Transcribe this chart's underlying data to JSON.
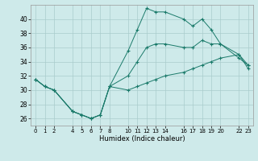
{
  "xlabel": "Humidex (Indice chaleur)",
  "background_color": "#ceeaea",
  "grid_color": "#aacccc",
  "line_color": "#1a7a6a",
  "xlim": [
    -0.5,
    23.5
  ],
  "ylim": [
    25.0,
    42.0
  ],
  "yticks": [
    26,
    28,
    30,
    32,
    34,
    36,
    38,
    40
  ],
  "xtick_positions": [
    0,
    1,
    2,
    4,
    5,
    6,
    7,
    8,
    10,
    11,
    12,
    13,
    14,
    16,
    17,
    18,
    19,
    20,
    22,
    23
  ],
  "xtick_labels": [
    "0",
    "1",
    "2",
    "4",
    "5",
    "6",
    "7",
    "8",
    "10",
    "11",
    "12",
    "13",
    "14",
    "16",
    "17",
    "18",
    "19",
    "20",
    "22",
    "23"
  ],
  "series_max_x": [
    0,
    1,
    2,
    4,
    5,
    6,
    7,
    8,
    10,
    11,
    12,
    13,
    14,
    16,
    17,
    18,
    19,
    20,
    22,
    23
  ],
  "series_max_y": [
    31.5,
    30.5,
    30.0,
    27.0,
    26.5,
    26.0,
    26.5,
    30.5,
    35.5,
    38.5,
    41.5,
    41.0,
    41.0,
    40.0,
    39.0,
    40.0,
    38.5,
    36.5,
    34.5,
    33.5
  ],
  "series_min_x": [
    0,
    1,
    2,
    4,
    5,
    6,
    7,
    8,
    10,
    11,
    12,
    13,
    14,
    16,
    17,
    18,
    19,
    20,
    22,
    23
  ],
  "series_min_y": [
    31.5,
    30.5,
    30.0,
    27.0,
    26.5,
    26.0,
    26.5,
    30.5,
    30.0,
    30.5,
    31.0,
    31.5,
    32.0,
    32.5,
    33.0,
    33.5,
    34.0,
    34.5,
    35.0,
    33.0
  ],
  "series_mean_x": [
    0,
    1,
    2,
    4,
    5,
    6,
    7,
    8,
    10,
    11,
    12,
    13,
    14,
    16,
    17,
    18,
    19,
    20,
    22,
    23
  ],
  "series_mean_y": [
    31.5,
    30.5,
    30.0,
    27.0,
    26.5,
    26.0,
    26.5,
    30.5,
    32.0,
    34.0,
    36.0,
    36.5,
    36.5,
    36.0,
    36.0,
    37.0,
    36.5,
    36.5,
    35.0,
    33.5
  ]
}
